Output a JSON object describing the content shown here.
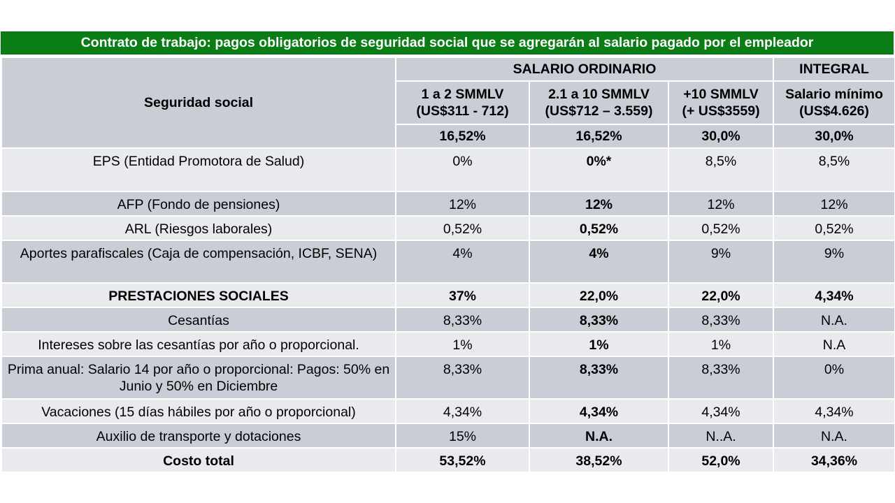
{
  "title": "Contrato de trabajo: pagos obligatorios de seguridad social que se agregarán al salario pagado por el empleador",
  "header": {
    "seguridad_social": "Seguridad social",
    "salario_ordinario": "SALARIO ORDINARIO",
    "integral": "INTEGRAL",
    "columns": [
      {
        "line1": "1 a 2 SMMLV",
        "line2": "(US$311 - 712)"
      },
      {
        "line1": "2.1 a 10 SMMLV",
        "line2": "(US$712 – 3.559)"
      },
      {
        "line1": "+10 SMMLV",
        "line2": "(+ US$3559)"
      },
      {
        "line1": "Salario mínimo",
        "line2": "(US$4.626)"
      }
    ],
    "totals": [
      "16,52%",
      "16,52%",
      "30,0%",
      "30,0%"
    ]
  },
  "rows": [
    {
      "label": "EPS (Entidad Promotora de Salud)",
      "values": [
        "0%",
        "0%*",
        "8,5%",
        "8,5%"
      ]
    },
    {
      "label": "AFP (Fondo de pensiones)",
      "values": [
        "12%",
        "12%",
        "12%",
        "12%"
      ]
    },
    {
      "label": "ARL (Riesgos laborales)",
      "values": [
        "0,52%",
        "0,52%",
        "0,52%",
        "0,52%"
      ]
    },
    {
      "label": "Aportes parafiscales (Caja de compensación, ICBF, SENA)",
      "values": [
        "4%",
        "4%",
        "9%",
        "9%"
      ]
    },
    {
      "label": "PRESTACIONES SOCIALES",
      "values": [
        "37%",
        "22,0%",
        "22,0%",
        "4,34%"
      ]
    },
    {
      "label": "Cesantías",
      "values": [
        "8,33%",
        "8,33%",
        "8,33%",
        "N.A."
      ]
    },
    {
      "label": "Intereses sobre las cesantías por año o proporcional.",
      "values": [
        "1%",
        "1%",
        "1%",
        "N.A"
      ]
    },
    {
      "label": "Prima anual: Salario 14 por año  o proporcional: Pagos: 50% en Junio y 50% en Diciembre",
      "values": [
        "8,33%",
        "8,33%",
        "8,33%",
        "0%"
      ]
    },
    {
      "label": "Vacaciones (15 días hábiles por año o proporcional)",
      "values": [
        "4,34%",
        "4,34%",
        "4,34%",
        "4,34%"
      ]
    },
    {
      "label": "Auxilio de transporte y dotaciones",
      "values": [
        "15%",
        "N.A.",
        "N..A.",
        "N.A."
      ]
    },
    {
      "label": "Costo total",
      "values": [
        "53,52%",
        "38,52%",
        "52,0%",
        "34,36%"
      ]
    }
  ]
}
